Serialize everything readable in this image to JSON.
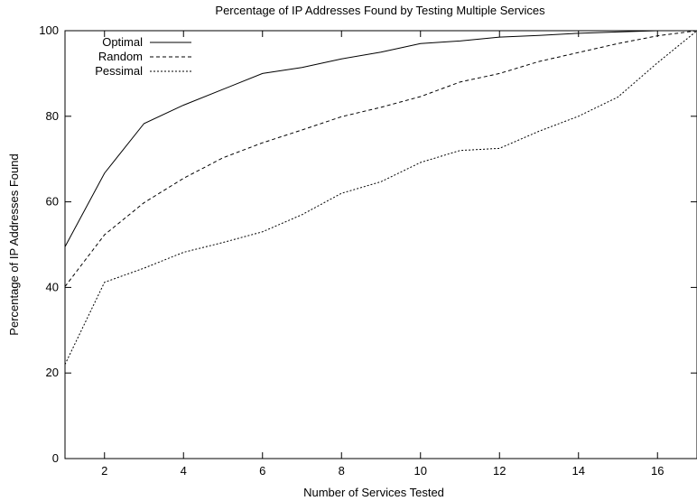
{
  "chart_data": {
    "type": "line",
    "title": "Percentage of IP Addresses Found by Testing Multiple Services",
    "xlabel": "Number of Services Tested",
    "ylabel": "Percentage of IP Addresses Found",
    "xlim": [
      1,
      17
    ],
    "ylim": [
      0,
      100
    ],
    "xticks": [
      2,
      4,
      6,
      8,
      10,
      12,
      14,
      16
    ],
    "yticks": [
      0,
      20,
      40,
      60,
      80,
      100
    ],
    "grid": false,
    "legend_position": "top-left",
    "x": [
      1,
      2,
      3,
      4,
      5,
      6,
      7,
      8,
      9,
      10,
      11,
      12,
      13,
      14,
      15,
      16,
      17
    ],
    "series": [
      {
        "name": "Optimal",
        "dash": "solid",
        "values": [
          49.5,
          66.7,
          78.3,
          82.6,
          86.3,
          90.0,
          91.4,
          93.4,
          95.0,
          97.0,
          97.6,
          98.5,
          98.9,
          99.4,
          99.7,
          100,
          100
        ]
      },
      {
        "name": "Random",
        "dash": "dashed",
        "values": [
          40.2,
          52.3,
          59.8,
          65.5,
          70.3,
          73.8,
          76.8,
          79.9,
          82.1,
          84.6,
          88.0,
          90.0,
          92.8,
          94.9,
          97.0,
          98.8,
          100
        ]
      },
      {
        "name": "Pessimal",
        "dash": "dotted",
        "values": [
          22.0,
          41.2,
          44.5,
          48.2,
          50.5,
          53.0,
          57.0,
          62.0,
          64.7,
          69.2,
          72.0,
          72.5,
          76.5,
          80.0,
          84.5,
          92.5,
          100
        ]
      }
    ]
  }
}
